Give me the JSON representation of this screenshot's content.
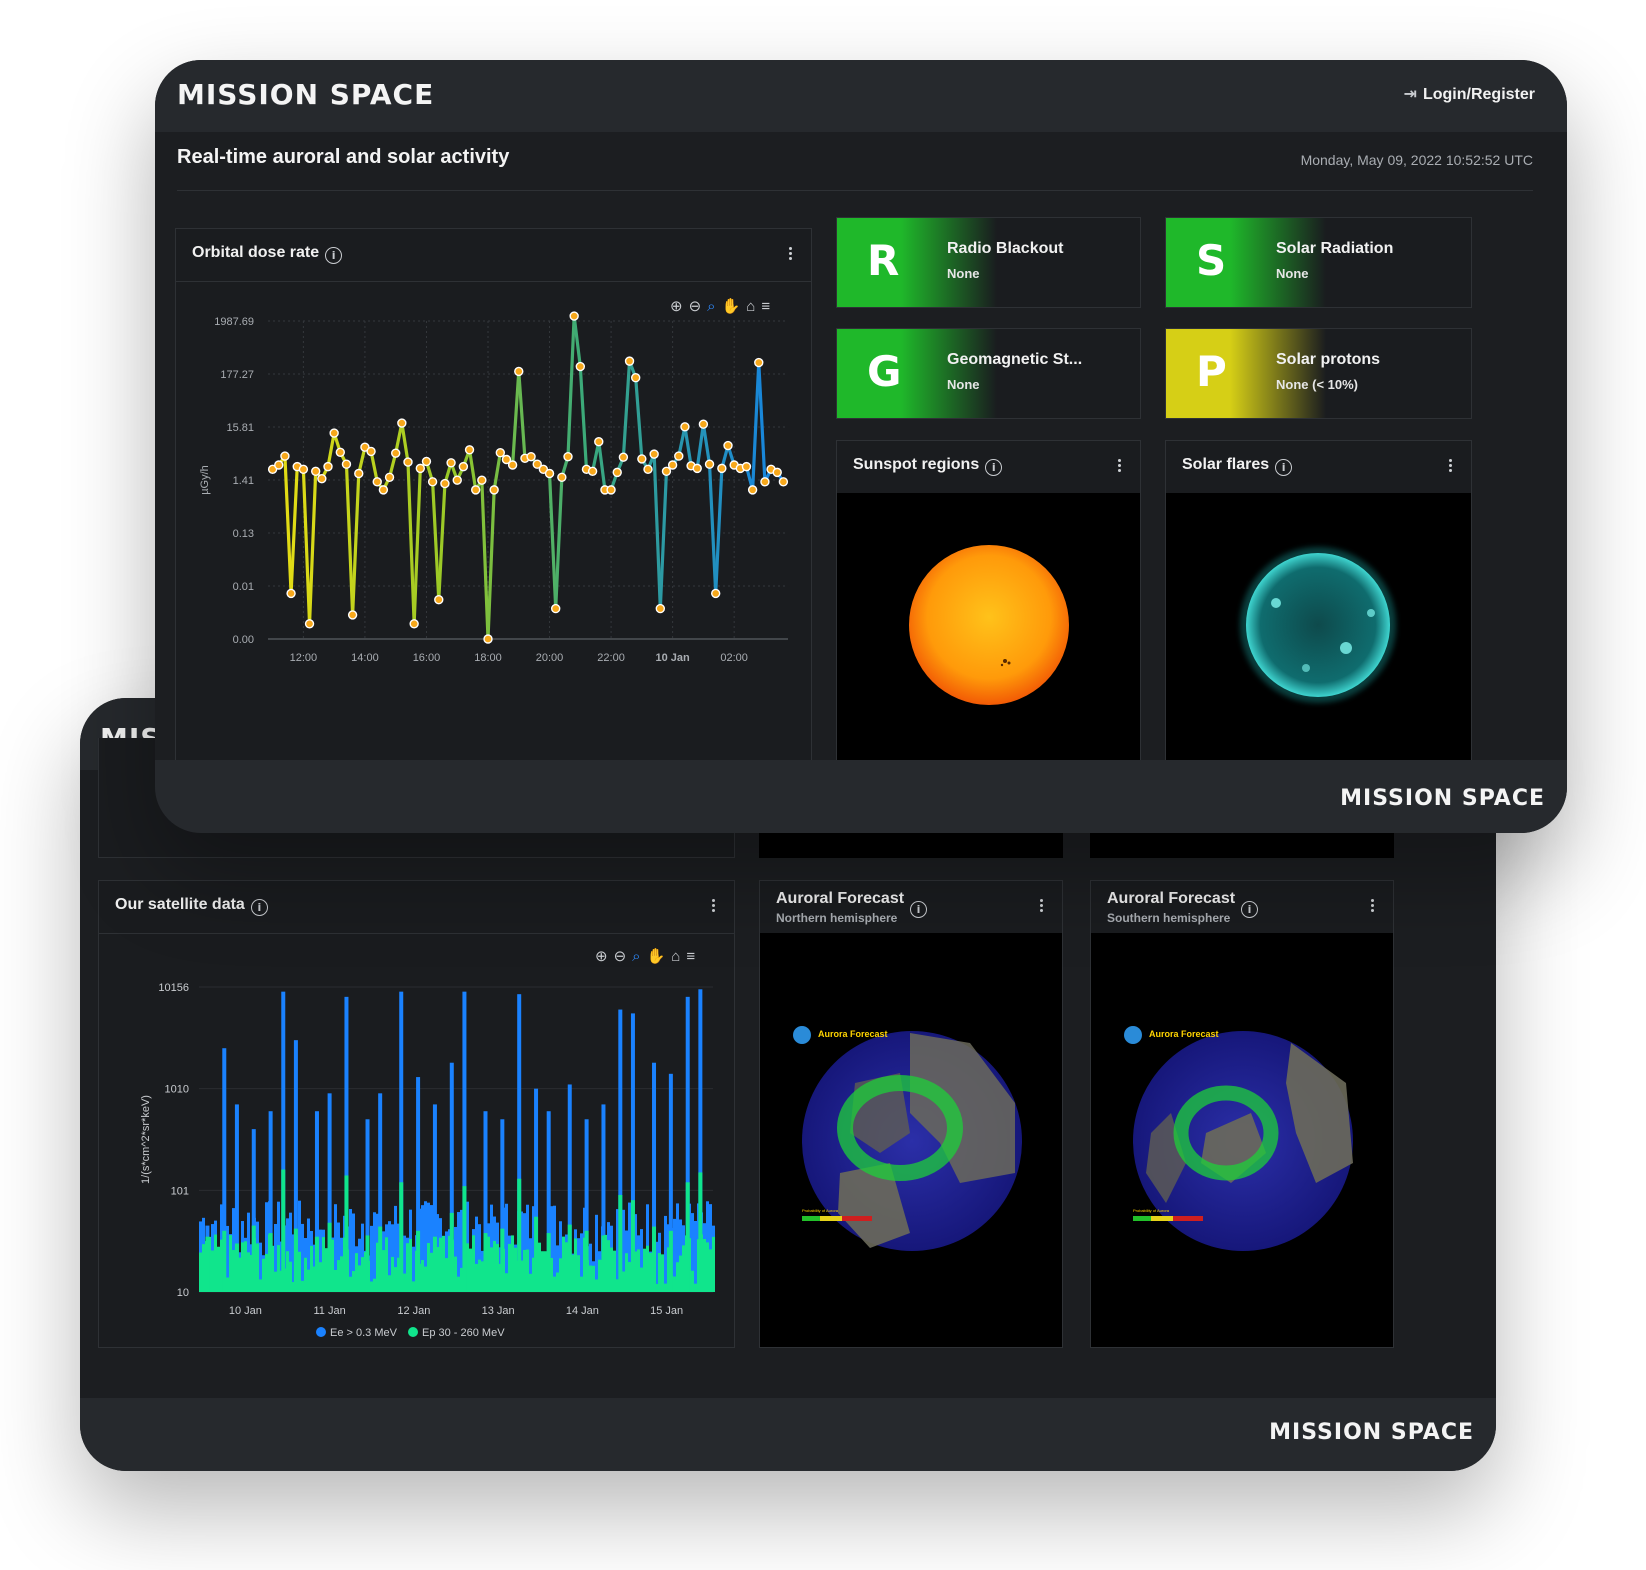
{
  "brand": {
    "logo": "MISSION SPACE",
    "logo_partial": "MIS"
  },
  "header": {
    "login_label": "Login/Register"
  },
  "page": {
    "title": "Real-time auroral and solar activity",
    "timestamp": "Monday, May 09, 2022 10:52:52 UTC"
  },
  "scales": [
    {
      "letter": "R",
      "name": "Radio Blackout",
      "level": "None",
      "color": "#1fb82a"
    },
    {
      "letter": "S",
      "name": "Solar Radiation",
      "level": "None",
      "color": "#1fb82a"
    },
    {
      "letter": "G",
      "name": "Geomagnetic St...",
      "level": "None",
      "color": "#1fb82a"
    },
    {
      "letter": "P",
      "name": "Solar protons",
      "level": "None (< 10%)",
      "color": "#d6cf16"
    }
  ],
  "panels": {
    "dose": {
      "title": "Orbital dose rate"
    },
    "sunspot": {
      "title": "Sunspot regions"
    },
    "flares": {
      "title": "Solar flares"
    },
    "satellite": {
      "title": "Our satellite data"
    },
    "aurora_north": {
      "title": "Auroral Forecast",
      "subtitle": "Northern hemisphere",
      "map_title": "Aurora Forecast",
      "scale_title": "Probability of Aurora"
    },
    "aurora_south": {
      "title": "Auroral Forecast",
      "subtitle": "Southern hemisphere",
      "map_title": "Aurora Forecast",
      "scale_title": "Probability of Aurora"
    }
  },
  "chart_data": [
    {
      "type": "line",
      "title": "",
      "ylabel": "µGy/h",
      "y_scale": "log",
      "y_ticks": [
        "1987.69",
        "177.27",
        "15.81",
        "1.41",
        "0.13",
        "0.01",
        "0.00"
      ],
      "x_ticks": [
        "12:00",
        "14:00",
        "16:00",
        "18:00",
        "20:00",
        "22:00",
        "10 Jan",
        "02:00"
      ],
      "x_hours": [
        11.0,
        11.2,
        11.4,
        11.6,
        11.8,
        12.0,
        12.2,
        12.4,
        12.6,
        12.8,
        13.0,
        13.2,
        13.4,
        13.6,
        13.8,
        14.0,
        14.2,
        14.4,
        14.6,
        14.8,
        15.0,
        15.2,
        15.4,
        15.6,
        15.8,
        16.0,
        16.2,
        16.4,
        16.6,
        16.8,
        17.0,
        17.2,
        17.4,
        17.6,
        17.8,
        18.0,
        18.2,
        18.4,
        18.6,
        18.8,
        19.0,
        19.2,
        19.4,
        19.6,
        19.8,
        20.0,
        20.2,
        20.4,
        20.6,
        20.8,
        21.0,
        21.2,
        21.4,
        21.6,
        21.8,
        22.0,
        22.2,
        22.4,
        22.6,
        22.8,
        23.0,
        23.2,
        23.4,
        23.6,
        23.8,
        24.0,
        24.2,
        24.4,
        24.6,
        24.8,
        25.0,
        25.2,
        25.4,
        25.6,
        25.8,
        26.0,
        26.2,
        26.4,
        26.6,
        26.8,
        27.0,
        27.2,
        27.4,
        27.6
      ],
      "values": [
        2.3,
        2.8,
        4.2,
        0.008,
        2.6,
        2.3,
        0.002,
        2.1,
        1.5,
        2.6,
        12.0,
        5.0,
        2.9,
        0.003,
        1.9,
        6.3,
        5.2,
        1.3,
        0.9,
        1.6,
        4.8,
        19.0,
        3.2,
        0.002,
        2.4,
        3.3,
        1.3,
        0.006,
        1.2,
        3.1,
        1.4,
        2.6,
        5.6,
        0.9,
        1.4,
        0.001,
        0.9,
        4.9,
        3.6,
        2.8,
        200.0,
        3.8,
        4.1,
        2.9,
        2.3,
        1.9,
        0.004,
        1.6,
        4.1,
        2500.0,
        250.0,
        2.3,
        2.1,
        8.1,
        0.9,
        0.9,
        2.0,
        4.0,
        320.0,
        150.0,
        3.7,
        2.3,
        4.6,
        0.004,
        2.1,
        2.8,
        4.2,
        16.0,
        2.7,
        2.4,
        18.0,
        2.9,
        0.008,
        2.4,
        6.8,
        2.8,
        2.4,
        2.6,
        0.9,
        300.0,
        1.3,
        2.3,
        2.0,
        1.3
      ]
    },
    {
      "type": "area",
      "title": "",
      "ylabel": "1/(s*cm^2*sr*keV)",
      "y_scale": "log",
      "y_ticks": [
        "10156",
        "1010",
        "101",
        "10"
      ],
      "x_ticks": [
        "10 Jan",
        "11 Jan",
        "12 Jan",
        "13 Jan",
        "14 Jan",
        "15 Jan"
      ],
      "series": [
        {
          "name": "Ee > 0.3 MeV",
          "color": "#1a82ff",
          "x_days": [
            9.55,
            9.75,
            9.9,
            10.1,
            10.3,
            10.45,
            10.6,
            10.85,
            11.0,
            11.2,
            11.45,
            11.6,
            11.85,
            12.05,
            12.25,
            12.45,
            12.6,
            12.85,
            13.05,
            13.25,
            13.45,
            13.6,
            13.85,
            14.05,
            14.25,
            14.45,
            14.6,
            14.85,
            15.05,
            15.25,
            15.4
          ],
          "values": [
            45,
            2500,
            700,
            400,
            600,
            9000,
            3000,
            600,
            900,
            8000,
            500,
            900,
            9000,
            1300,
            700,
            1800,
            9000,
            600,
            500,
            8500,
            1000,
            600,
            1100,
            500,
            700,
            6000,
            5500,
            1800,
            1400,
            8000,
            9500
          ]
        },
        {
          "name": "Ep 30 - 260 MeV",
          "color": "#10e58c",
          "x_days": [
            9.55,
            9.75,
            9.9,
            10.1,
            10.3,
            10.45,
            10.6,
            10.85,
            11.0,
            11.2,
            11.45,
            11.6,
            11.85,
            12.05,
            12.25,
            12.45,
            12.6,
            12.85,
            13.05,
            13.25,
            13.45,
            13.6,
            13.85,
            14.05,
            14.25,
            14.45,
            14.6,
            14.85,
            15.05,
            15.25,
            15.4
          ],
          "values": [
            35,
            40,
            30,
            45,
            38,
            160,
            42,
            35,
            48,
            140,
            36,
            44,
            120,
            40,
            35,
            60,
            110,
            38,
            42,
            130,
            55,
            38,
            46,
            40,
            36,
            90,
            80,
            44,
            40,
            120,
            150
          ]
        }
      ]
    }
  ]
}
